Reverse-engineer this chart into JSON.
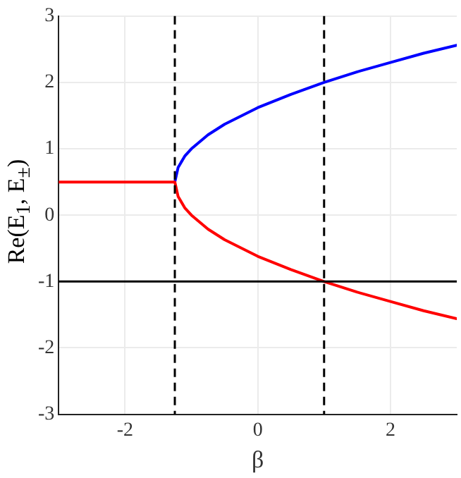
{
  "chart_data": {
    "type": "line",
    "xlabel": "β",
    "ylabel": "Re(E$_{1}$, E$_{±}$)",
    "xlim": [
      -3,
      3
    ],
    "xticks": [
      -2,
      0,
      2
    ],
    "ylim": [
      -3,
      3
    ],
    "yticks": [
      -3,
      -2,
      -1,
      0,
      1,
      2,
      3
    ],
    "grid": true,
    "legend": false,
    "marker": "none",
    "line_style": "solid",
    "series": [
      {
        "color": "#ff0000",
        "x": [
          -3,
          -1.25,
          -1.2,
          -1.1,
          -1.0,
          -0.75,
          -0.5,
          0,
          0.5,
          1,
          1.5,
          2,
          2.5,
          3
        ],
        "values": [
          0.5,
          0.5,
          0.28,
          0.11,
          0.0,
          -0.21,
          -0.37,
          -0.62,
          -0.82,
          -1.0,
          -1.16,
          -1.3,
          -1.44,
          -1.56
        ]
      },
      {
        "color": "#0000ff",
        "x": [
          -1.25,
          -1.2,
          -1.1,
          -1.0,
          -0.75,
          -0.5,
          0,
          0.5,
          1,
          1.5,
          2,
          2.5,
          3
        ],
        "values": [
          0.5,
          0.72,
          0.89,
          1.0,
          1.21,
          1.37,
          1.62,
          1.82,
          2.0,
          2.16,
          2.3,
          2.44,
          2.56
        ]
      }
    ],
    "ref_lines": [
      {
        "axis": "y",
        "value": -1,
        "color": "#000000",
        "line_style": "solid"
      },
      {
        "axis": "x",
        "value": -1.25,
        "color": "#000000",
        "line_style": "dashed"
      },
      {
        "axis": "x",
        "value": 1,
        "color": "#000000",
        "line_style": "dashed"
      }
    ]
  }
}
